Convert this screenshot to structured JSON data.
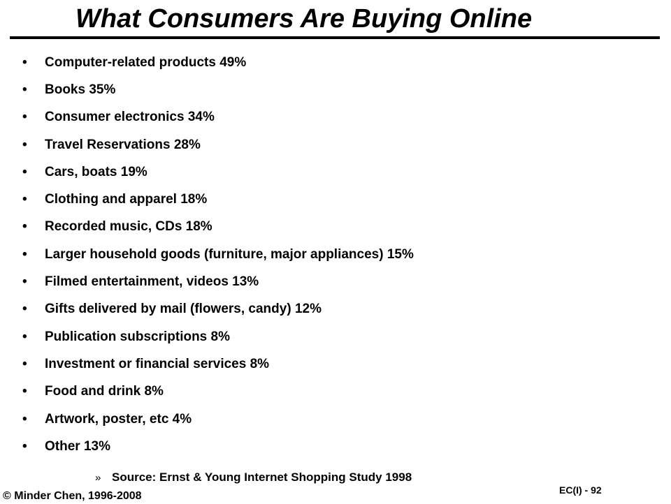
{
  "slide": {
    "title": "What Consumers Are Buying Online",
    "bullet_symbol": "•",
    "items": [
      "Computer-related products 49%",
      "Books 35%",
      "Consumer electronics 34%",
      "Travel Reservations 28%",
      "Cars, boats 19%",
      "Clothing and apparel 18%",
      "Recorded music, CDs 18%",
      "Larger household goods (furniture, major appliances) 15%",
      "Filmed entertainment, videos 13%",
      "Gifts delivered by mail (flowers, candy) 12%",
      "Publication subscriptions 8%",
      "Investment or financial services 8%",
      "Food and drink 8%",
      "Artwork, poster, etc 4%",
      "Other 13%"
    ],
    "source_marker": "»",
    "source": "Source: Ernst & Young Internet Shopping Study 1998",
    "copyright": "© Minder Chen, 1996-2008",
    "slide_number": "EC(I) - 92"
  }
}
